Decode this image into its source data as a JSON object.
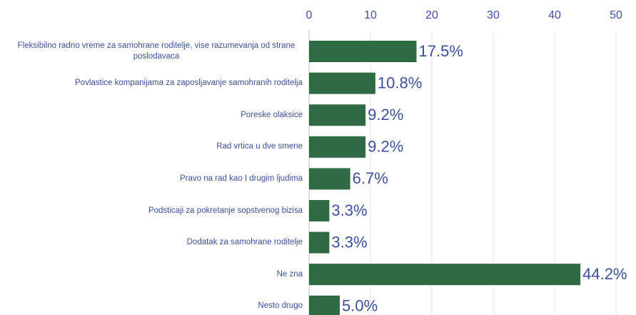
{
  "chart_data": {
    "type": "bar",
    "orientation": "horizontal",
    "categories": [
      "Fleksibilno radno vreme za samohrane roditelje, vise razumevanja od strane poslodavaca",
      "Povlastice kompanijama za zaposljavanje samohranih roditelja",
      "Poreske olaksice",
      "Rad vrtica u dve smene",
      "Pravo na rad kao I drugim ljudima",
      "Podsticaji za pokretanje sopstvenog bizisa",
      "Dodatak za samohrane roditelje",
      "Ne zna",
      "Nesto drugo"
    ],
    "values": [
      17.5,
      10.8,
      9.2,
      9.2,
      6.7,
      3.3,
      3.3,
      44.2,
      5.0
    ],
    "value_labels": [
      "17.5%",
      "10.8%",
      "9.2%",
      "9.2%",
      "6.7%",
      "3.3%",
      "3.3%",
      "44.2%",
      "5.0%"
    ],
    "color": "#2e6b45",
    "xlim": [
      0,
      50
    ],
    "xticks": [
      0,
      10,
      20,
      30,
      40,
      50
    ],
    "grid": true
  }
}
